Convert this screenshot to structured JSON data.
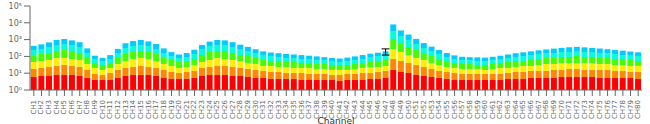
{
  "chart_data": {
    "type": "bar",
    "xlabel": "Channel",
    "categories": [
      "CH1",
      "CH2",
      "CH3",
      "CH4",
      "CH5",
      "CH6",
      "CH7",
      "CH8",
      "CH9",
      "CH10",
      "CH11",
      "CH12",
      "CH13",
      "CH14",
      "CH15",
      "CH16",
      "CH17",
      "CH18",
      "CH19",
      "CH20",
      "CH21",
      "CH22",
      "CH23",
      "CH24",
      "CH25",
      "CH26",
      "CH27",
      "CH28",
      "CH29",
      "CH30",
      "CH31",
      "CH32",
      "CH33",
      "CH34",
      "CH35",
      "CH36",
      "CH37",
      "CH38",
      "CH39",
      "CH40",
      "CH41",
      "CH42",
      "CH43",
      "CH44",
      "CH45",
      "CH46",
      "CH47",
      "CH48",
      "CH49",
      "CH50",
      "CH51",
      "CH52",
      "CH53",
      "CH54",
      "CH55",
      "CH56",
      "CH57",
      "CH58",
      "CH59",
      "CH60",
      "CH61",
      "CH62",
      "CH63",
      "CH64",
      "CH65",
      "CH66",
      "CH67",
      "CH68",
      "CH69",
      "CH70",
      "CH71",
      "CH72",
      "CH73",
      "CH74",
      "CH75",
      "CH76",
      "CH77",
      "CH78",
      "CH79",
      "CH80"
    ],
    "values": [
      420,
      520,
      680,
      950,
      1100,
      900,
      700,
      300,
      110,
      80,
      120,
      280,
      600,
      820,
      950,
      780,
      550,
      300,
      180,
      130,
      160,
      250,
      480,
      760,
      950,
      900,
      700,
      500,
      370,
      270,
      200,
      170,
      155,
      140,
      130,
      120,
      110,
      100,
      90,
      80,
      75,
      85,
      100,
      120,
      145,
      165,
      200,
      8000,
      3500,
      2000,
      1100,
      620,
      380,
      240,
      160,
      115,
      95,
      90,
      88,
      85,
      95,
      110,
      130,
      155,
      175,
      200,
      230,
      260,
      290,
      320,
      350,
      370,
      345,
      320,
      295,
      270,
      245,
      220,
      195,
      175
    ],
    "log": "y",
    "ylim": [
      1,
      100000
    ],
    "yticks": [
      {
        "value": 1,
        "label": "10⁰"
      },
      {
        "value": 10,
        "label": "10¹"
      },
      {
        "value": 100,
        "label": "10²"
      },
      {
        "value": 1000,
        "label": "10³"
      },
      {
        "value": 10000,
        "label": "10⁴"
      },
      {
        "value": 100000,
        "label": "10⁵"
      }
    ],
    "grid": false,
    "band_colors": [
      "#ff0000",
      "#ff8800",
      "#ffee00",
      "#44ff00",
      "#00ffdd",
      "#00ccff"
    ],
    "band_fractions": [
      0.3,
      0.18,
      0.15,
      0.15,
      0.12,
      0.1
    ],
    "error_bar": {
      "category": "CH47",
      "minus": 80,
      "plus": 80
    }
  }
}
